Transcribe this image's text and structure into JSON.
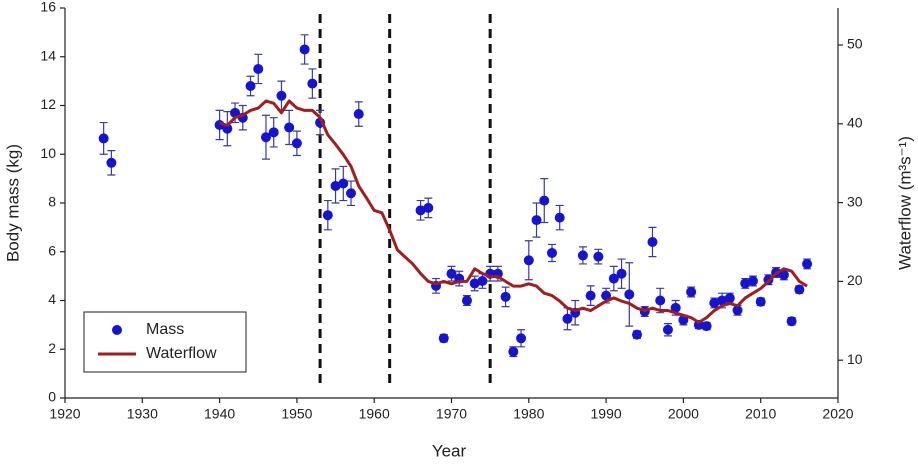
{
  "chart_data": {
    "type": "scatter",
    "xlabel": "Year",
    "ylabel": "Body mass (kg)",
    "y2label": "Waterflow (m³s⁻¹)",
    "xlim": [
      1920,
      2020
    ],
    "xticks": [
      1920,
      1930,
      1940,
      1950,
      1960,
      1970,
      1980,
      1990,
      2000,
      2010,
      2020
    ],
    "ylim": [
      0,
      16
    ],
    "yticks": [
      0,
      2,
      4,
      6,
      8,
      10,
      12,
      14,
      16
    ],
    "y2lim": [
      5.2,
      54.7
    ],
    "y2ticks": [
      10,
      20,
      30,
      40,
      50
    ],
    "vlines": [
      1953,
      1962,
      1975
    ],
    "legend": "lower left",
    "series": [
      {
        "name": "Mass",
        "type": "scatter",
        "color": "#1414d2",
        "error_color": "#3b3b9c",
        "x": [
          1925,
          1926,
          1940,
          1941,
          1942,
          1943,
          1944,
          1945,
          1946,
          1947,
          1948,
          1949,
          1950,
          1951,
          1952,
          1953,
          1954,
          1955,
          1956,
          1957,
          1958,
          1966,
          1967,
          1968,
          1969,
          1970,
          1971,
          1972,
          1973,
          1974,
          1975,
          1976,
          1977,
          1978,
          1979,
          1980,
          1981,
          1982,
          1983,
          1984,
          1985,
          1986,
          1987,
          1988,
          1989,
          1990,
          1991,
          1992,
          1993,
          1994,
          1995,
          1996,
          1997,
          1998,
          1999,
          2000,
          2001,
          2002,
          2003,
          2004,
          2005,
          2006,
          2007,
          2008,
          2009,
          2010,
          2011,
          2012,
          2013,
          2014,
          2015,
          2016
        ],
        "values": [
          10.65,
          9.65,
          11.2,
          11.05,
          11.7,
          11.5,
          12.8,
          13.5,
          10.7,
          10.9,
          12.4,
          11.1,
          10.45,
          14.3,
          12.9,
          11.3,
          7.5,
          8.7,
          8.8,
          8.4,
          11.65,
          7.7,
          7.8,
          4.6,
          2.45,
          5.1,
          4.9,
          4.0,
          4.7,
          4.8,
          5.1,
          5.1,
          4.15,
          1.9,
          2.45,
          5.65,
          7.3,
          8.1,
          5.95,
          7.4,
          3.25,
          3.5,
          5.85,
          4.2,
          5.8,
          4.2,
          4.9,
          5.1,
          4.25,
          2.6,
          3.55,
          6.4,
          4.0,
          2.8,
          3.7,
          3.2,
          4.35,
          3.0,
          2.95,
          3.9,
          4.0,
          4.1,
          3.6,
          4.7,
          4.8,
          3.95,
          4.85,
          5.15,
          5.05,
          3.15,
          4.45,
          5.5
        ],
        "errors": [
          0.65,
          0.5,
          0.6,
          0.7,
          0.4,
          0.5,
          0.4,
          0.6,
          0.9,
          0.6,
          0.6,
          0.7,
          0.5,
          0.6,
          0.6,
          0.5,
          0.6,
          0.7,
          0.7,
          0.5,
          0.5,
          0.4,
          0.4,
          0.3,
          0.15,
          0.3,
          0.3,
          0.2,
          0.3,
          0.3,
          0.3,
          0.3,
          0.4,
          0.2,
          0.35,
          0.8,
          0.7,
          0.9,
          0.35,
          0.5,
          0.45,
          0.5,
          0.35,
          0.4,
          0.3,
          0.3,
          0.5,
          0.6,
          1.3,
          0.15,
          0.2,
          0.6,
          0.5,
          0.25,
          0.3,
          0.2,
          0.2,
          0.15,
          0.15,
          0.2,
          0.3,
          0.2,
          0.2,
          0.2,
          0.2,
          0.15,
          0.2,
          0.2,
          0.2,
          0.15,
          0.15,
          0.2
        ]
      },
      {
        "name": "Waterflow",
        "type": "line",
        "axis": "y2",
        "color": "#a21d1d",
        "x": [
          1940,
          1941,
          1942,
          1943,
          1944,
          1945,
          1946,
          1947,
          1948,
          1949,
          1950,
          1951,
          1952,
          1953,
          1954,
          1955,
          1956,
          1957,
          1958,
          1959,
          1960,
          1961,
          1962,
          1963,
          1964,
          1965,
          1966,
          1967,
          1968,
          1969,
          1970,
          1971,
          1972,
          1973,
          1974,
          1975,
          1976,
          1977,
          1978,
          1979,
          1980,
          1981,
          1982,
          1983,
          1984,
          1985,
          1986,
          1987,
          1988,
          1989,
          1990,
          1991,
          1992,
          1993,
          1994,
          1995,
          1996,
          1997,
          1998,
          1999,
          2000,
          2001,
          2002,
          2003,
          2004,
          2005,
          2006,
          2007,
          2008,
          2009,
          2010,
          2011,
          2012,
          2013,
          2014,
          2015,
          2016
        ],
        "values": [
          40.1,
          39.8,
          40.8,
          41.1,
          41.7,
          42.0,
          42.9,
          42.6,
          41.4,
          42.9,
          42.0,
          41.7,
          41.7,
          40.8,
          38.6,
          37.4,
          36.1,
          34.6,
          32.1,
          30.6,
          29.0,
          28.7,
          26.5,
          24.0,
          23.1,
          22.2,
          21.0,
          20.0,
          19.7,
          20.0,
          19.7,
          20.0,
          20.0,
          21.6,
          21.0,
          20.6,
          20.6,
          20.0,
          19.4,
          19.4,
          19.7,
          19.4,
          18.5,
          18.2,
          17.5,
          16.6,
          16.3,
          16.6,
          16.3,
          16.9,
          17.5,
          17.9,
          17.5,
          17.2,
          16.6,
          16.3,
          16.6,
          16.3,
          16.3,
          16.0,
          15.7,
          15.4,
          14.8,
          15.4,
          16.3,
          16.9,
          17.2,
          16.9,
          17.9,
          18.5,
          19.1,
          20.0,
          21.0,
          21.6,
          21.3,
          20.0,
          19.4
        ]
      }
    ]
  }
}
